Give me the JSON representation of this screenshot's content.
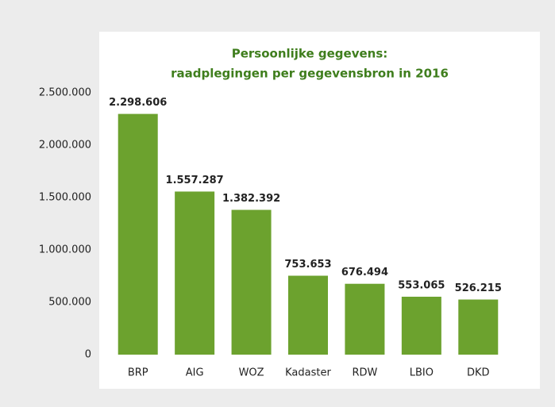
{
  "chart_data": {
    "type": "bar",
    "title": [
      "Persoonlijke gegevens:",
      "raadplegingen per gegevensbron in 2016"
    ],
    "categories": [
      "BRP",
      "AIG",
      "WOZ",
      "Kadaster",
      "RDW",
      "LBIO",
      "DKD"
    ],
    "values": [
      2298606,
      1557287,
      1382392,
      753653,
      676494,
      553065,
      526215
    ],
    "value_labels": [
      "2.298.606",
      "1.557.287",
      "1.382.392",
      "753.653",
      "676.494",
      "553.065",
      "526.215"
    ],
    "color": "#6ca22e",
    "title_color": "#3f7e1d",
    "ylim": [
      0,
      2500000
    ],
    "yticks": [
      0,
      {
        "value": 500000,
        "label": "500.000"
      },
      {
        "value": 1000000,
        "label": "1.000.000"
      },
      {
        "value": 1500000,
        "label": "1.500.000"
      },
      {
        "value": 2000000,
        "label": "2.000.000"
      },
      {
        "value": 2500000,
        "label": "2.500.000"
      }
    ],
    "grid": false
  }
}
